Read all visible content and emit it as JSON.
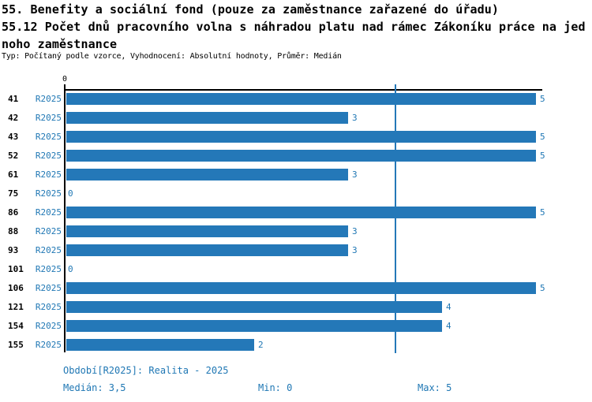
{
  "header": {
    "title_line1": "55. Benefity a sociální fond (pouze za zaměstnance zařazené do úřadu)",
    "title_line2": "55.12 Počet dnů pracovního volna s náhradou platu nad rámec Zákoníku práce na jed",
    "title_line3": "noho zaměstnance",
    "meta": "Typ: Počítaný podle vzorce, Vyhodnocení: Absolutní hodnoty, Průměr: Medián"
  },
  "chart_data": {
    "type": "bar",
    "orientation": "horizontal",
    "title": "55.12 Počet dnů pracovního volna s náhradou platu nad rámec Zákoníku práce na jednoho zaměstnance",
    "categories": [
      "41",
      "42",
      "43",
      "52",
      "61",
      "75",
      "86",
      "88",
      "93",
      "101",
      "106",
      "121",
      "154",
      "155"
    ],
    "series": [
      {
        "name": "R2025",
        "values": [
          5,
          3,
          5,
          5,
          3,
          0,
          5,
          3,
          3,
          0,
          5,
          4,
          4,
          2
        ]
      }
    ],
    "value_labels": [
      "5",
      "3",
      "5",
      "5",
      "3",
      "0",
      "5",
      "3",
      "3",
      "0",
      "5",
      "4",
      "4",
      "2"
    ],
    "xlim": [
      0,
      5
    ],
    "x_tick_labels": [
      "0"
    ],
    "median": 3.5,
    "min": 0,
    "max": 5,
    "grid": false,
    "legend_position": "none",
    "colors": {
      "bar": "#2478b8",
      "accent_text": "#1f77b4",
      "axis": "#000000",
      "median_line": "#2478b8"
    }
  },
  "footer": {
    "period": "Období[R2025]: Realita - 2025",
    "median": "Medián: 3,5",
    "min": "Min: 0",
    "max": "Max: 5"
  }
}
